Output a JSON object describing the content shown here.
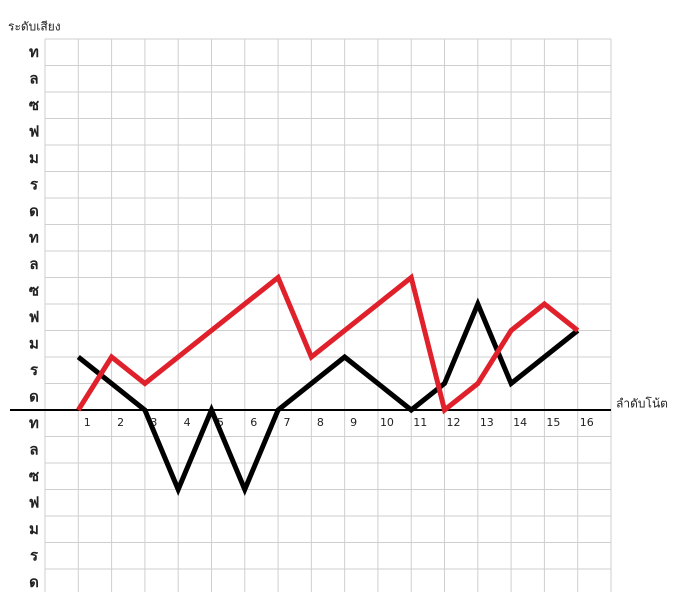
{
  "chart_data": {
    "type": "line",
    "ylabel": "ระดับเสียง",
    "xlabel": "ลำดับโน้ต",
    "xlim": [
      0,
      17
    ],
    "xticks": [
      1,
      2,
      3,
      4,
      5,
      6,
      7,
      8,
      9,
      10,
      11,
      12,
      13,
      14,
      15,
      16
    ],
    "ylim": [
      -7,
      14
    ],
    "yticks": [
      {
        "value": 13,
        "label": "ท"
      },
      {
        "value": 12,
        "label": "ล"
      },
      {
        "value": 11,
        "label": "ซ"
      },
      {
        "value": 10,
        "label": "ฟ"
      },
      {
        "value": 9,
        "label": "ม"
      },
      {
        "value": 8,
        "label": "ร"
      },
      {
        "value": 7,
        "label": "ด"
      },
      {
        "value": 6,
        "label": "ท"
      },
      {
        "value": 5,
        "label": "ล"
      },
      {
        "value": 4,
        "label": "ซ"
      },
      {
        "value": 3,
        "label": "ฟ"
      },
      {
        "value": 2,
        "label": "ม"
      },
      {
        "value": 1,
        "label": "ร"
      },
      {
        "value": 0,
        "label": "ด"
      },
      {
        "value": -1,
        "label": "ท"
      },
      {
        "value": -2,
        "label": "ล"
      },
      {
        "value": -3,
        "label": "ซ"
      },
      {
        "value": -4,
        "label": "ฟ"
      },
      {
        "value": -5,
        "label": "ม"
      },
      {
        "value": -6,
        "label": "ร"
      },
      {
        "value": -7,
        "label": "ด"
      }
    ],
    "grid": true,
    "series": [
      {
        "color": "#000000",
        "x": [
          1,
          3,
          4,
          5,
          6,
          7,
          8,
          9,
          11,
          12,
          13,
          14,
          16
        ],
        "values": [
          2,
          0,
          -3,
          0,
          -3,
          0,
          1,
          2,
          0,
          1,
          4,
          1,
          3
        ]
      },
      {
        "color": "#e0202a",
        "x": [
          1,
          2,
          3,
          7,
          8,
          11,
          12,
          13,
          14,
          15,
          16
        ],
        "values": [
          0,
          2,
          1,
          5,
          2,
          5,
          0,
          1,
          3,
          4,
          3
        ]
      }
    ]
  }
}
